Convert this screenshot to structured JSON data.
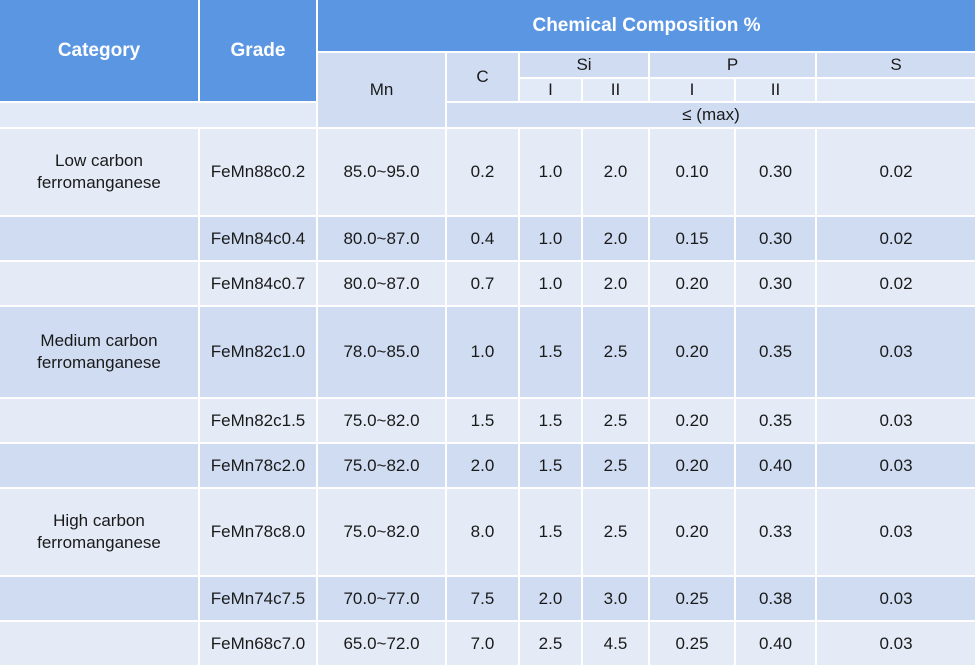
{
  "header": {
    "category": "Category",
    "grade": "Grade",
    "chemical_composition": "Chemical Composition %",
    "mn": "Mn",
    "c": "C",
    "si": "Si",
    "p": "P",
    "s": "S",
    "si_1": "I",
    "si_2": "II",
    "p_1": "I",
    "p_2": "II",
    "max_note": "≤ (max)"
  },
  "rows": [
    {
      "category": "Low carbon ferromanganese",
      "grade": "FeMn88c0.2",
      "mn": "85.0~95.0",
      "c": "0.2",
      "si1": "1.0",
      "si2": "2.0",
      "p1": "0.10",
      "p2": "0.30",
      "s": "0.02"
    },
    {
      "category": "",
      "grade": "FeMn84c0.4",
      "mn": "80.0~87.0",
      "c": "0.4",
      "si1": "1.0",
      "si2": "2.0",
      "p1": "0.15",
      "p2": "0.30",
      "s": "0.02"
    },
    {
      "category": "",
      "grade": "FeMn84c0.7",
      "mn": "80.0~87.0",
      "c": "0.7",
      "si1": "1.0",
      "si2": "2.0",
      "p1": "0.20",
      "p2": "0.30",
      "s": "0.02"
    },
    {
      "category": "Medium carbon ferromanganese",
      "grade": "FeMn82c1.0",
      "mn": "78.0~85.0",
      "c": "1.0",
      "si1": "1.5",
      "si2": "2.5",
      "p1": "0.20",
      "p2": "0.35",
      "s": "0.03"
    },
    {
      "category": "",
      "grade": "FeMn82c1.5",
      "mn": "75.0~82.0",
      "c": "1.5",
      "si1": "1.5",
      "si2": "2.5",
      "p1": "0.20",
      "p2": "0.35",
      "s": "0.03"
    },
    {
      "category": "",
      "grade": "FeMn78c2.0",
      "mn": "75.0~82.0",
      "c": "2.0",
      "si1": "1.5",
      "si2": "2.5",
      "p1": "0.20",
      "p2": "0.40",
      "s": "0.03"
    },
    {
      "category": "High carbon ferromanganese",
      "grade": "FeMn78c8.0",
      "mn": "75.0~82.0",
      "c": "8.0",
      "si1": "1.5",
      "si2": "2.5",
      "p1": "0.20",
      "p2": "0.33",
      "s": "0.03"
    },
    {
      "category": "",
      "grade": "FeMn74c7.5",
      "mn": "70.0~77.0",
      "c": "7.5",
      "si1": "2.0",
      "si2": "3.0",
      "p1": "0.25",
      "p2": "0.38",
      "s": "0.03"
    },
    {
      "category": "",
      "grade": "FeMn68c7.0",
      "mn": "65.0~72.0",
      "c": "7.0",
      "si1": "2.5",
      "si2": "4.5",
      "p1": "0.25",
      "p2": "0.40",
      "s": "0.03"
    }
  ],
  "colors": {
    "header_dark": "#5b96e3",
    "row_light": "#e4ebf6",
    "row_dark": "#cfdcf1"
  }
}
